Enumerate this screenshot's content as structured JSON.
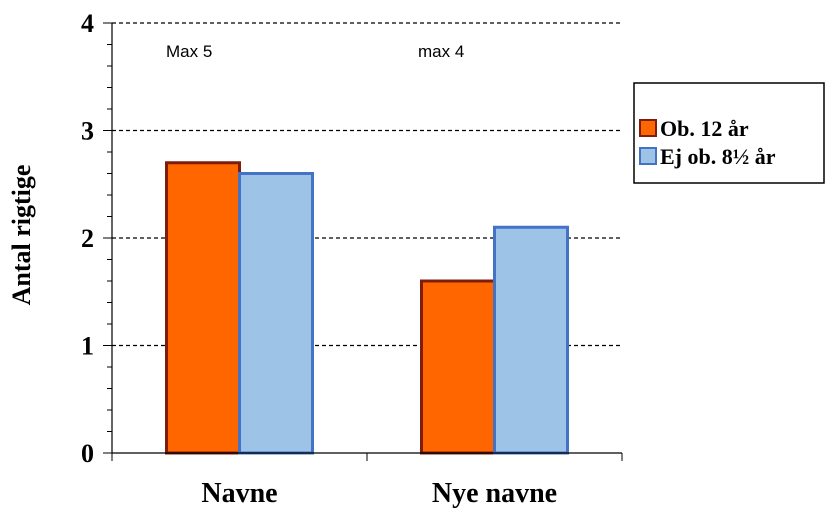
{
  "chart_data": {
    "type": "bar",
    "title": "",
    "xlabel": "",
    "ylabel": "Antal rigtige",
    "ylim": [
      0,
      4
    ],
    "yticks": [
      0,
      1,
      2,
      3,
      4
    ],
    "grid": true,
    "legend_position": "right",
    "categories": [
      "Navne",
      "Nye navne"
    ],
    "annotations": [
      "Max 5",
      "max 4"
    ],
    "series": [
      {
        "name": "Ob. 12 år",
        "values": [
          2.7,
          1.6
        ],
        "color": "#ff6600",
        "stroke": "#7f1d0d"
      },
      {
        "name": "Ej ob. 8½ år",
        "values": [
          2.6,
          2.1
        ],
        "color": "#9dc3e6",
        "stroke": "#4472c4"
      }
    ]
  }
}
